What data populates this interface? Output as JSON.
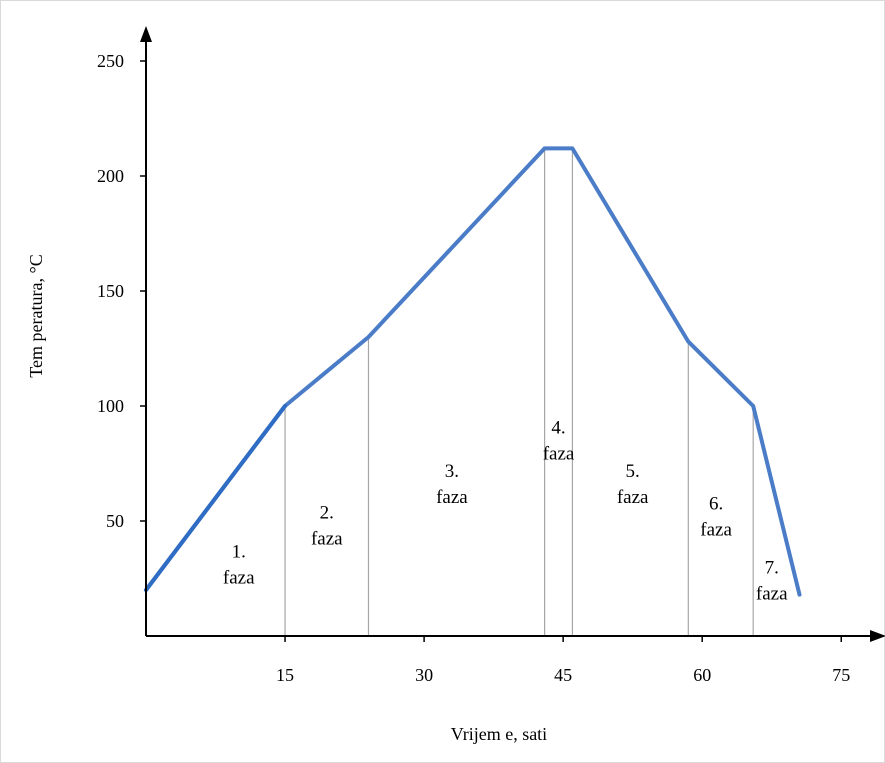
{
  "chart_data": {
    "type": "line",
    "title": "",
    "xlabel": "Vrijem e, sati",
    "ylabel": "Tem peratura, °C",
    "xlim": [
      0,
      80
    ],
    "ylim": [
      0,
      260
    ],
    "x_ticks": [
      15,
      30,
      45,
      60,
      75
    ],
    "y_ticks": [
      50,
      100,
      150,
      200,
      250
    ],
    "grid": false,
    "series": [
      {
        "color": "#4a7cc7",
        "x": [
          0,
          15,
          24,
          43,
          46,
          58.5,
          65.5,
          70.5
        ],
        "y": [
          20,
          100,
          130,
          212,
          212,
          128,
          100,
          18
        ]
      }
    ],
    "phase_boundaries": [
      15,
      24,
      43,
      46,
      58.5,
      65.5
    ],
    "phases": [
      {
        "number": "1.",
        "label": "faza",
        "x": 10,
        "y": 28
      },
      {
        "number": "2.",
        "label": "faza",
        "x": 19.5,
        "y": 45
      },
      {
        "number": "3.",
        "label": "faza",
        "x": 33,
        "y": 63
      },
      {
        "number": "4.",
        "label": "faza",
        "x": 44.5,
        "y": 82
      },
      {
        "number": "5.",
        "label": "faza",
        "x": 52.5,
        "y": 63
      },
      {
        "number": "6.",
        "label": "faza",
        "x": 61.5,
        "y": 49
      },
      {
        "number": "7.",
        "label": "faza",
        "x": 67.5,
        "y": 21
      }
    ]
  }
}
